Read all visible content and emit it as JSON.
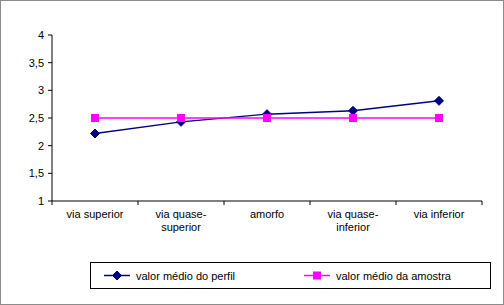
{
  "chart_data": {
    "type": "line",
    "categories": [
      "via superior",
      "via quase-superior",
      "amorfo",
      "via quase-inferior",
      "via inferior"
    ],
    "series": [
      {
        "name": "valor médio do perfil",
        "color": "#000080",
        "marker": "diamond",
        "values": [
          2.22,
          2.43,
          2.57,
          2.63,
          2.81
        ]
      },
      {
        "name": "valor médio da amostra",
        "color": "#ff00ff",
        "marker": "square",
        "values": [
          2.5,
          2.5,
          2.5,
          2.5,
          2.5
        ]
      }
    ],
    "ylim": [
      1,
      4
    ],
    "yticks": [
      1,
      {
        "value": 1.5,
        "label": "1,5"
      },
      2,
      {
        "value": 2.5,
        "label": "2,5"
      },
      3,
      {
        "value": 3.5,
        "label": "3,5"
      },
      4
    ],
    "grid": false,
    "legend": "bottom"
  }
}
